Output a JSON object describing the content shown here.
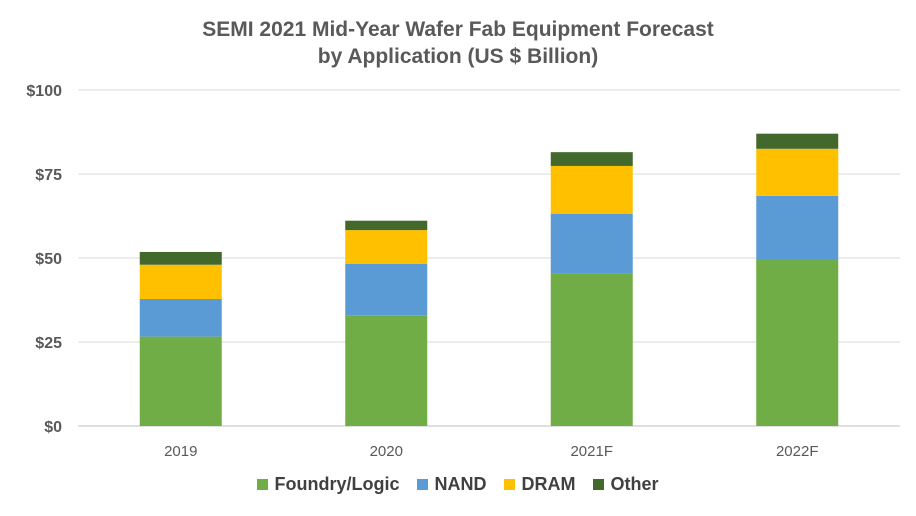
{
  "chart_data": {
    "type": "bar",
    "stacked": true,
    "title": [
      "SEMI 2021 Mid-Year Wafer Fab Equipment Forecast",
      "by Application (US $ Billion)"
    ],
    "categories": [
      "2019",
      "2020",
      "2021F",
      "2022F"
    ],
    "ylim": [
      0,
      100
    ],
    "yticks": [
      0,
      25,
      50,
      75,
      100
    ],
    "ytick_labels": [
      "$0",
      "$25",
      "$50",
      "$75",
      "$100"
    ],
    "grid": true,
    "legend_position": "bottom",
    "series": [
      {
        "name": "Foundry/Logic",
        "color": "#70AD47",
        "values": [
          26.6,
          32.8,
          45.5,
          49.4
        ]
      },
      {
        "name": "NAND",
        "color": "#5B9BD5",
        "values": [
          11.2,
          15.5,
          17.6,
          19.1
        ]
      },
      {
        "name": "DRAM",
        "color": "#FFC000",
        "values": [
          10.2,
          10.0,
          14.3,
          14.0
        ]
      },
      {
        "name": "Other",
        "color": "#43682B",
        "values": [
          3.8,
          2.8,
          4.1,
          4.5
        ]
      }
    ]
  }
}
